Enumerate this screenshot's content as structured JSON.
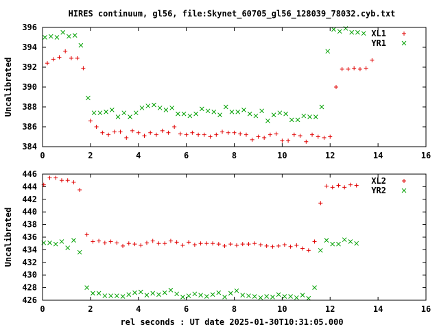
{
  "chart_data": {
    "type": "scatter",
    "title": "HIRES continuum, gl56, file:Skynet_60705_gl56_128039_78032.cyb.txt",
    "xlabel": "rel seconds : UT date 2025-01-30T10:31:05.000",
    "xlim": [
      0,
      16
    ],
    "xticks": [
      0,
      2,
      4,
      6,
      8,
      10,
      12,
      14,
      16
    ],
    "panels": [
      {
        "name": "top",
        "ylabel": "Uncalibrated",
        "ylim": [
          384,
          396
        ],
        "yticks": [
          384,
          386,
          388,
          390,
          392,
          394,
          396
        ],
        "series": [
          {
            "name": "XL1",
            "marker": "plus",
            "color": "#e00000",
            "points": [
              [
                0.2,
                392.4
              ],
              [
                0.45,
                392.8
              ],
              [
                0.7,
                393.0
              ],
              [
                0.95,
                393.6
              ],
              [
                1.2,
                392.9
              ],
              [
                1.45,
                392.9
              ],
              [
                1.7,
                391.9
              ],
              [
                2.0,
                386.6
              ],
              [
                2.25,
                386.0
              ],
              [
                2.5,
                385.4
              ],
              [
                2.75,
                385.2
              ],
              [
                3.0,
                385.5
              ],
              [
                3.25,
                385.5
              ],
              [
                3.5,
                384.9
              ],
              [
                3.75,
                385.6
              ],
              [
                4.0,
                385.4
              ],
              [
                4.25,
                385.1
              ],
              [
                4.5,
                385.4
              ],
              [
                4.75,
                385.2
              ],
              [
                5.0,
                385.6
              ],
              [
                5.25,
                385.4
              ],
              [
                5.5,
                386.0
              ],
              [
                5.75,
                385.3
              ],
              [
                6.0,
                385.2
              ],
              [
                6.25,
                385.4
              ],
              [
                6.5,
                385.2
              ],
              [
                6.75,
                385.2
              ],
              [
                7.0,
                385.0
              ],
              [
                7.25,
                385.2
              ],
              [
                7.5,
                385.5
              ],
              [
                7.75,
                385.4
              ],
              [
                8.0,
                385.4
              ],
              [
                8.25,
                385.3
              ],
              [
                8.5,
                385.2
              ],
              [
                8.75,
                384.7
              ],
              [
                9.0,
                385.0
              ],
              [
                9.25,
                384.9
              ],
              [
                9.5,
                385.2
              ],
              [
                9.75,
                385.3
              ],
              [
                10.0,
                384.6
              ],
              [
                10.25,
                384.6
              ],
              [
                10.5,
                385.2
              ],
              [
                10.75,
                385.1
              ],
              [
                11.0,
                384.5
              ],
              [
                11.25,
                385.2
              ],
              [
                11.5,
                385.0
              ],
              [
                11.75,
                384.9
              ],
              [
                12.0,
                385.0
              ],
              [
                12.25,
                390.0
              ],
              [
                12.5,
                391.8
              ],
              [
                12.75,
                391.8
              ],
              [
                13.0,
                391.9
              ],
              [
                13.25,
                391.8
              ],
              [
                13.5,
                391.9
              ],
              [
                13.75,
                392.7
              ]
            ]
          },
          {
            "name": "YR1",
            "marker": "cross",
            "color": "#00a000",
            "points": [
              [
                0.1,
                395.0
              ],
              [
                0.35,
                395.1
              ],
              [
                0.6,
                395.0
              ],
              [
                0.85,
                395.5
              ],
              [
                1.1,
                395.1
              ],
              [
                1.35,
                395.2
              ],
              [
                1.6,
                394.2
              ],
              [
                1.9,
                388.9
              ],
              [
                2.15,
                387.4
              ],
              [
                2.4,
                387.4
              ],
              [
                2.65,
                387.5
              ],
              [
                2.9,
                387.7
              ],
              [
                3.15,
                387.0
              ],
              [
                3.4,
                387.4
              ],
              [
                3.65,
                387.0
              ],
              [
                3.9,
                387.4
              ],
              [
                4.15,
                387.9
              ],
              [
                4.4,
                388.1
              ],
              [
                4.65,
                388.2
              ],
              [
                4.9,
                387.9
              ],
              [
                5.15,
                387.7
              ],
              [
                5.4,
                387.9
              ],
              [
                5.65,
                387.3
              ],
              [
                5.9,
                387.3
              ],
              [
                6.15,
                387.1
              ],
              [
                6.4,
                387.3
              ],
              [
                6.65,
                387.8
              ],
              [
                6.9,
                387.6
              ],
              [
                7.15,
                387.5
              ],
              [
                7.4,
                387.2
              ],
              [
                7.65,
                388.0
              ],
              [
                7.9,
                387.5
              ],
              [
                8.15,
                387.5
              ],
              [
                8.4,
                387.7
              ],
              [
                8.65,
                387.3
              ],
              [
                8.9,
                387.1
              ],
              [
                9.15,
                387.6
              ],
              [
                9.4,
                386.6
              ],
              [
                9.65,
                387.2
              ],
              [
                9.9,
                387.4
              ],
              [
                10.15,
                387.3
              ],
              [
                10.4,
                386.7
              ],
              [
                10.65,
                386.7
              ],
              [
                10.9,
                387.1
              ],
              [
                11.15,
                387.0
              ],
              [
                11.4,
                387.0
              ],
              [
                11.65,
                388.0
              ],
              [
                11.9,
                393.6
              ],
              [
                12.15,
                395.8
              ],
              [
                12.4,
                395.6
              ],
              [
                12.65,
                395.9
              ],
              [
                12.9,
                395.5
              ],
              [
                13.15,
                395.5
              ],
              [
                13.4,
                395.4
              ]
            ]
          }
        ]
      },
      {
        "name": "bottom",
        "ylabel": "Uncalibrated",
        "ylim": [
          426,
          446
        ],
        "yticks": [
          426,
          428,
          430,
          432,
          434,
          436,
          438,
          440,
          442,
          444,
          446
        ],
        "series": [
          {
            "name": "XL2",
            "marker": "plus",
            "color": "#e00000",
            "points": [
              [
                0.05,
                444.3
              ],
              [
                0.3,
                445.4
              ],
              [
                0.55,
                445.4
              ],
              [
                0.8,
                445.0
              ],
              [
                1.05,
                445.0
              ],
              [
                1.3,
                444.7
              ],
              [
                1.55,
                443.5
              ],
              [
                1.85,
                436.4
              ],
              [
                2.1,
                435.3
              ],
              [
                2.35,
                435.4
              ],
              [
                2.6,
                435.1
              ],
              [
                2.85,
                435.3
              ],
              [
                3.1,
                435.1
              ],
              [
                3.35,
                434.6
              ],
              [
                3.6,
                435.0
              ],
              [
                3.85,
                434.9
              ],
              [
                4.1,
                434.7
              ],
              [
                4.35,
                435.1
              ],
              [
                4.6,
                435.4
              ],
              [
                4.85,
                435.0
              ],
              [
                5.1,
                435.0
              ],
              [
                5.35,
                435.4
              ],
              [
                5.6,
                435.2
              ],
              [
                5.85,
                434.7
              ],
              [
                6.1,
                435.2
              ],
              [
                6.35,
                434.8
              ],
              [
                6.6,
                435.0
              ],
              [
                6.85,
                435.0
              ],
              [
                7.1,
                435.0
              ],
              [
                7.35,
                434.9
              ],
              [
                7.6,
                434.6
              ],
              [
                7.85,
                434.9
              ],
              [
                8.1,
                434.7
              ],
              [
                8.35,
                434.9
              ],
              [
                8.6,
                434.9
              ],
              [
                8.85,
                435.0
              ],
              [
                9.1,
                434.8
              ],
              [
                9.35,
                434.6
              ],
              [
                9.6,
                434.5
              ],
              [
                9.85,
                434.6
              ],
              [
                10.1,
                434.8
              ],
              [
                10.35,
                434.5
              ],
              [
                10.6,
                434.7
              ],
              [
                10.85,
                434.2
              ],
              [
                11.1,
                433.9
              ],
              [
                11.35,
                435.3
              ],
              [
                11.6,
                441.4
              ],
              [
                11.85,
                444.1
              ],
              [
                12.1,
                443.9
              ],
              [
                12.35,
                444.2
              ],
              [
                12.6,
                443.9
              ],
              [
                12.85,
                444.3
              ],
              [
                13.1,
                444.2
              ]
            ]
          },
          {
            "name": "YR2",
            "marker": "cross",
            "color": "#00a000",
            "points": [
              [
                0.05,
                435.1
              ],
              [
                0.3,
                435.1
              ],
              [
                0.55,
                434.9
              ],
              [
                0.8,
                435.3
              ],
              [
                1.05,
                434.3
              ],
              [
                1.3,
                435.5
              ],
              [
                1.55,
                433.6
              ],
              [
                1.85,
                428.0
              ],
              [
                2.1,
                427.1
              ],
              [
                2.35,
                427.1
              ],
              [
                2.6,
                426.7
              ],
              [
                2.85,
                426.7
              ],
              [
                3.1,
                426.7
              ],
              [
                3.35,
                426.6
              ],
              [
                3.6,
                426.9
              ],
              [
                3.85,
                427.2
              ],
              [
                4.1,
                427.3
              ],
              [
                4.35,
                426.8
              ],
              [
                4.6,
                427.1
              ],
              [
                4.85,
                426.9
              ],
              [
                5.1,
                427.2
              ],
              [
                5.35,
                427.6
              ],
              [
                5.6,
                427.0
              ],
              [
                5.85,
                426.5
              ],
              [
                6.1,
                426.7
              ],
              [
                6.35,
                427.0
              ],
              [
                6.6,
                426.8
              ],
              [
                6.85,
                426.6
              ],
              [
                7.1,
                426.9
              ],
              [
                7.35,
                427.2
              ],
              [
                7.6,
                426.5
              ],
              [
                7.85,
                427.1
              ],
              [
                8.1,
                427.5
              ],
              [
                8.35,
                426.8
              ],
              [
                8.6,
                426.7
              ],
              [
                8.85,
                426.6
              ],
              [
                9.1,
                426.4
              ],
              [
                9.35,
                426.6
              ],
              [
                9.6,
                426.5
              ],
              [
                9.85,
                426.9
              ],
              [
                10.1,
                426.6
              ],
              [
                10.35,
                426.6
              ],
              [
                10.6,
                426.4
              ],
              [
                10.85,
                426.8
              ],
              [
                11.1,
                426.3
              ],
              [
                11.35,
                428.0
              ],
              [
                11.6,
                433.9
              ],
              [
                11.85,
                435.5
              ],
              [
                12.1,
                434.9
              ],
              [
                12.35,
                434.9
              ],
              [
                12.6,
                435.6
              ],
              [
                12.85,
                435.3
              ],
              [
                13.1,
                435.0
              ]
            ]
          }
        ]
      }
    ]
  }
}
